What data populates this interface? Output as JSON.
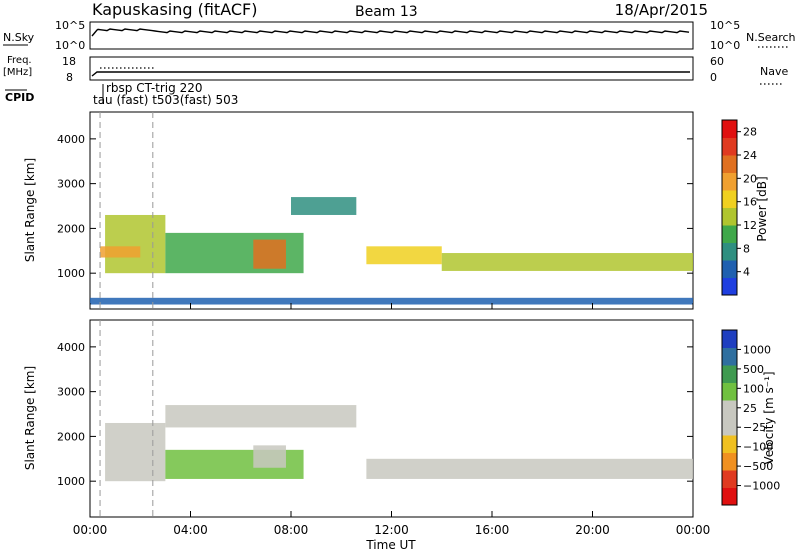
{
  "header": {
    "station": "Kapuskasing (fitACF)",
    "beam": "Beam 13",
    "date": "18/Apr/2015"
  },
  "top_panels": {
    "nsky_label": "N.Sky",
    "nsky_ticks": [
      "10^5",
      "10^0"
    ],
    "nsearch_label": "N.Search",
    "nsearch_ticks": [
      "10^5",
      "10^0"
    ],
    "freq_label": [
      "Freq.",
      "[MHz]"
    ],
    "freq_ticks": [
      "18",
      "8"
    ],
    "nave_label": "Nave",
    "nave_ticks": [
      "60",
      "0"
    ],
    "cpid_label": "CPID",
    "cpid_lines": [
      "rbsp CT-trig 220",
      "tau (fast) t503(fast) 503"
    ]
  },
  "colors": {
    "power_scale": [
      "#1f3fe0",
      "#1f60b0",
      "#2f8f80",
      "#3fa84a",
      "#b0c52f",
      "#f0d020",
      "#f0a030",
      "#e07020",
      "#e03a20",
      "#e01010"
    ],
    "velocity_scale": [
      "#e01010",
      "#e03a20",
      "#f09020",
      "#f0c020",
      "#c8c8c0",
      "#c8c8c0",
      "#70c040",
      "#3f9a50",
      "#2f6f9f",
      "#1f3fc0"
    ]
  },
  "chart_data": [
    {
      "type": "heatmap",
      "title": "",
      "ylabel": "Slant Range [km]",
      "xlabel": "",
      "x_ticks": [
        "00:00",
        "04:00",
        "08:00",
        "12:00",
        "16:00",
        "20:00",
        "00:00"
      ],
      "y_ticks": [
        "1000",
        "2000",
        "3000",
        "4000"
      ],
      "ylim": [
        200,
        4600
      ],
      "x_range_hours": [
        0,
        24
      ],
      "colorbar": {
        "label": "Power [dB]",
        "ticks": [
          "4",
          "8",
          "12",
          "16",
          "20",
          "24",
          "28"
        ],
        "range": [
          0,
          30
        ]
      },
      "echo_bands": [
        {
          "t": [
            0.6,
            3.0
          ],
          "r": [
            1000,
            2300
          ],
          "value": 12
        },
        {
          "t": [
            0.4,
            2.0
          ],
          "r": [
            1350,
            1600
          ],
          "value": 20
        },
        {
          "t": [
            3.0,
            8.5
          ],
          "r": [
            1000,
            1900
          ],
          "value": 10
        },
        {
          "t": [
            6.5,
            7.8
          ],
          "r": [
            1100,
            1750
          ],
          "value": 22
        },
        {
          "t": [
            8.0,
            10.6
          ],
          "r": [
            2300,
            2700
          ],
          "value": 6
        },
        {
          "t": [
            11.0,
            14.0
          ],
          "r": [
            1200,
            1600
          ],
          "value": 16
        },
        {
          "t": [
            14.0,
            24.0
          ],
          "r": [
            1050,
            1450
          ],
          "value": 12
        },
        {
          "t": [
            0.0,
            24.0
          ],
          "r": [
            300,
            450
          ],
          "value": 4
        }
      ]
    },
    {
      "type": "heatmap",
      "title": "",
      "ylabel": "Slant Range [km]",
      "xlabel": "Time UT",
      "x_ticks": [
        "00:00",
        "04:00",
        "08:00",
        "12:00",
        "16:00",
        "20:00",
        "00:00"
      ],
      "y_ticks": [
        "1000",
        "2000",
        "3000",
        "4000"
      ],
      "ylim": [
        200,
        4600
      ],
      "x_range_hours": [
        0,
        24
      ],
      "colorbar": {
        "label": "Velocity [m s⁻¹]",
        "ticks": [
          "1000",
          "500",
          "100",
          "25",
          "−25",
          "−100",
          "−500",
          "−1000"
        ],
        "range": [
          -1000,
          1000
        ]
      },
      "echo_bands": [
        {
          "t": [
            0.6,
            3.0
          ],
          "r": [
            1000,
            2300
          ],
          "value": 100
        },
        {
          "t": [
            3.0,
            10.6
          ],
          "r": [
            2200,
            2700
          ],
          "value": 0
        },
        {
          "t": [
            3.0,
            8.5
          ],
          "r": [
            1050,
            1700
          ],
          "value": 200
        },
        {
          "t": [
            6.5,
            7.8
          ],
          "r": [
            1300,
            1800
          ],
          "value": -150
        },
        {
          "t": [
            11.0,
            24.0
          ],
          "r": [
            1050,
            1500
          ],
          "value": 0
        }
      ]
    }
  ]
}
